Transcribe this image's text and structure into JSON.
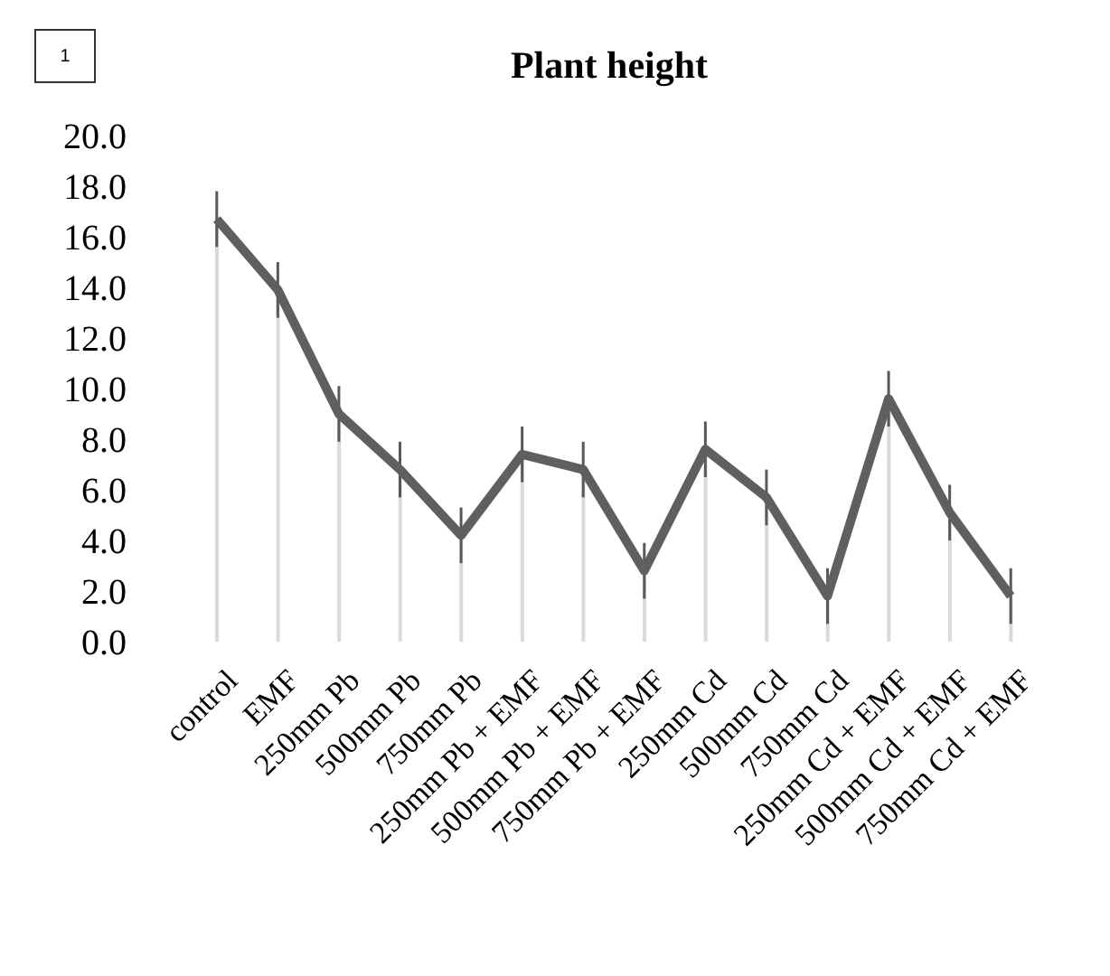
{
  "chart_data": {
    "type": "line",
    "title": "Plant height",
    "annotations": [
      "1"
    ],
    "categories": [
      "control",
      "EMF",
      "250mm Pb",
      "500mm Pb",
      "750mm Pb",
      "250mm Pb + EMF",
      "500mm Pb + EMF",
      "750mm Pb + EMF",
      "250mm Cd",
      "500mm Cd",
      "750mm Cd",
      "250mm Cd + EMF",
      "500mm Cd + EMF",
      "750mm Cd + EMF"
    ],
    "series": [
      {
        "type": "bar",
        "color": "#d9d9d9",
        "values": [
          16.7,
          13.9,
          9.0,
          6.8,
          4.2,
          7.4,
          6.8,
          2.8,
          7.6,
          5.7,
          1.8,
          9.6,
          5.1,
          1.8
        ]
      },
      {
        "color": "#5f5f5f",
        "values": [
          16.7,
          13.9,
          9.0,
          6.8,
          4.2,
          7.4,
          6.8,
          2.8,
          7.6,
          5.7,
          1.8,
          9.6,
          5.1,
          1.8
        ],
        "errors": [
          1.1,
          1.1,
          1.1,
          1.1,
          1.1,
          1.1,
          1.1,
          1.1,
          1.1,
          1.1,
          1.1,
          1.1,
          1.1,
          1.1
        ]
      }
    ],
    "ylim": [
      0,
      20
    ],
    "yticks": [
      {
        "value": 0,
        "label": "0.0"
      },
      {
        "value": 2,
        "label": "2.0"
      },
      {
        "value": 4,
        "label": "4.0"
      },
      {
        "value": 6,
        "label": "6.0"
      },
      {
        "value": 8,
        "label": "8.0"
      },
      {
        "value": 10,
        "label": "10.0"
      },
      {
        "value": 12,
        "label": "12.0"
      },
      {
        "value": 14,
        "label": "14.0"
      },
      {
        "value": 16,
        "label": "16.0"
      },
      {
        "value": 18,
        "label": "18.0"
      },
      {
        "value": 20,
        "label": "20.0"
      }
    ],
    "grid": false,
    "legend": false,
    "marker": "none",
    "line_style": "solid"
  }
}
